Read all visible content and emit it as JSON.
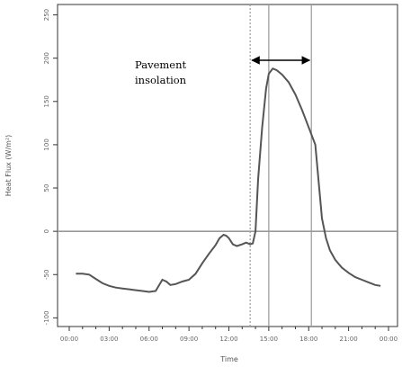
{
  "chart_data": {
    "type": "line",
    "xlabel": "Time",
    "ylabel": "Heat Flux (W/m²)",
    "x_ticks": [
      "00:00",
      "03:00",
      "06:00",
      "09:00",
      "12:00",
      "15:00",
      "18:00",
      "21:00",
      "00:00"
    ],
    "x_range_hours": [
      0,
      24
    ],
    "y_ticks": [
      -100,
      -50,
      0,
      50,
      100,
      150,
      200,
      250
    ],
    "ylim": [
      -110,
      262
    ],
    "grid": false,
    "horizontal_reference_line": 0,
    "vertical_reference_lines_hours": [
      13.6,
      15.0,
      18.2
    ],
    "annotation": {
      "text_lines": [
        "Pavement",
        "insolation"
      ],
      "arrow_from_hours": 13.6,
      "arrow_to_hours": 18.2
    },
    "series": [
      {
        "points": [
          [
            0.5,
            -49
          ],
          [
            1.0,
            -49
          ],
          [
            1.5,
            -50
          ],
          [
            2.0,
            -55
          ],
          [
            2.5,
            -60
          ],
          [
            3.0,
            -63
          ],
          [
            3.5,
            -65
          ],
          [
            4.0,
            -66
          ],
          [
            4.5,
            -67
          ],
          [
            5.0,
            -68
          ],
          [
            5.5,
            -69
          ],
          [
            6.0,
            -70
          ],
          [
            6.5,
            -69
          ],
          [
            7.0,
            -56
          ],
          [
            7.3,
            -58
          ],
          [
            7.6,
            -62
          ],
          [
            8.0,
            -61
          ],
          [
            8.5,
            -58
          ],
          [
            9.0,
            -56
          ],
          [
            9.5,
            -49
          ],
          [
            10.0,
            -37
          ],
          [
            10.5,
            -26
          ],
          [
            11.0,
            -16
          ],
          [
            11.3,
            -8
          ],
          [
            11.6,
            -4
          ],
          [
            11.8,
            -5
          ],
          [
            12.0,
            -8
          ],
          [
            12.3,
            -15
          ],
          [
            12.6,
            -17
          ],
          [
            13.0,
            -15
          ],
          [
            13.3,
            -13
          ],
          [
            13.6,
            -15
          ],
          [
            13.8,
            -14
          ],
          [
            14.0,
            0
          ],
          [
            14.2,
            60
          ],
          [
            14.5,
            120
          ],
          [
            14.8,
            165
          ],
          [
            15.0,
            182
          ],
          [
            15.3,
            188
          ],
          [
            15.6,
            186
          ],
          [
            16.0,
            181
          ],
          [
            16.5,
            172
          ],
          [
            17.0,
            158
          ],
          [
            17.5,
            140
          ],
          [
            18.0,
            120
          ],
          [
            18.5,
            100
          ],
          [
            19.0,
            15
          ],
          [
            19.3,
            -8
          ],
          [
            19.6,
            -22
          ],
          [
            20.0,
            -33
          ],
          [
            20.5,
            -42
          ],
          [
            21.0,
            -48
          ],
          [
            21.5,
            -53
          ],
          [
            22.0,
            -56
          ],
          [
            22.5,
            -59
          ],
          [
            23.0,
            -62
          ],
          [
            23.4,
            -63
          ]
        ]
      }
    ]
  }
}
